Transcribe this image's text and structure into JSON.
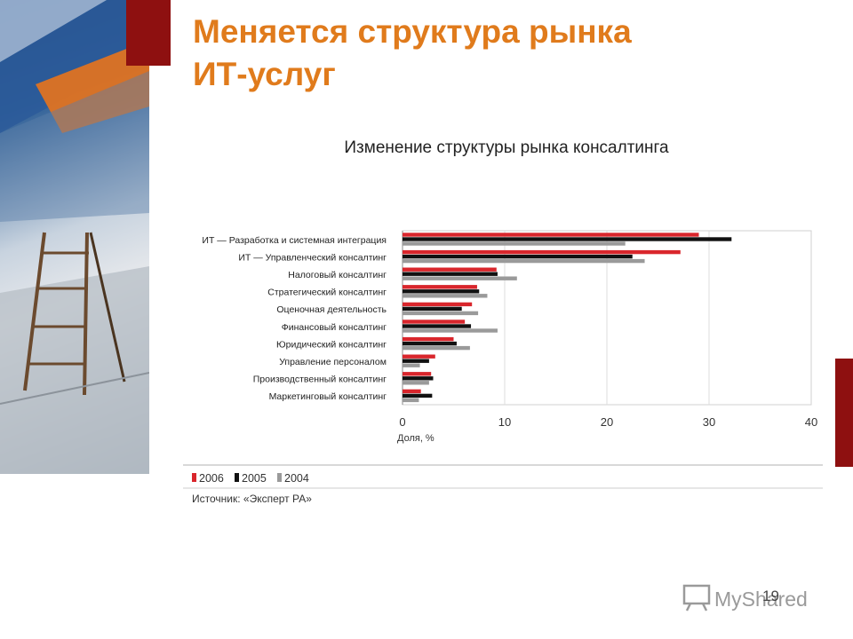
{
  "slide": {
    "title_line1": "Меняется структура рынка",
    "title_line2": "ИТ-услуг",
    "chart_title": "Изменение структуры рынка консалтинга",
    "source": "Источник: «Эксперт РА»",
    "page_number": "19",
    "watermark": "MyShared"
  },
  "colors": {
    "accent": "#e07b1c",
    "dark_red": "#8e1010",
    "series_2006": "#d9262c",
    "series_2005": "#111111",
    "series_2004": "#9a9a9a"
  },
  "chart_data": {
    "type": "bar",
    "orientation": "horizontal",
    "title": "Изменение структуры рынка консалтинга",
    "xlabel": "Доля, %",
    "xlim": [
      0,
      40
    ],
    "xticks": [
      0,
      10,
      20,
      30,
      40
    ],
    "legend_position": "bottom-left",
    "categories": [
      "ИТ — Разработка и системная интеграция",
      "ИТ — Управленческий консалтинг",
      "Налоговый консалтинг",
      "Стратегический консалтинг",
      "Оценочная деятельность",
      "Финансовый консалтинг",
      "Юридический консалтинг",
      "Управление персоналом",
      "Производственный консалтинг",
      "Маркетинговый консалтинг"
    ],
    "series": [
      {
        "name": "2006",
        "color": "#d9262c",
        "values": [
          29.0,
          27.2,
          9.2,
          7.3,
          6.8,
          6.1,
          5.0,
          3.2,
          2.8,
          1.8
        ]
      },
      {
        "name": "2005",
        "color": "#111111",
        "values": [
          32.2,
          22.5,
          9.3,
          7.5,
          5.8,
          6.7,
          5.3,
          2.6,
          3.0,
          2.9
        ]
      },
      {
        "name": "2004",
        "color": "#9a9a9a",
        "values": [
          21.8,
          23.7,
          11.2,
          8.3,
          7.4,
          9.3,
          6.6,
          1.7,
          2.6,
          1.6
        ]
      }
    ]
  }
}
